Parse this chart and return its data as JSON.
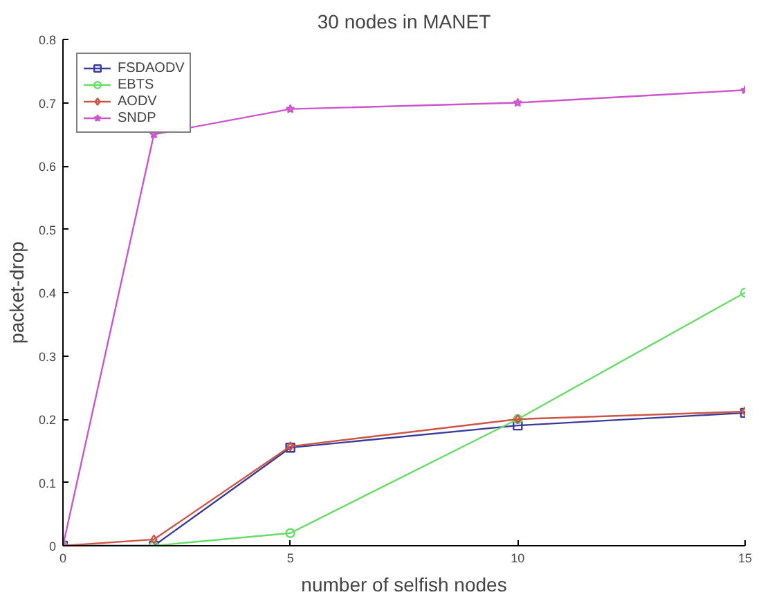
{
  "chart_data": {
    "type": "line",
    "title": "30 nodes in MANET",
    "xlabel": "number of selfish nodes",
    "ylabel": "packet-drop",
    "x": [
      0,
      2,
      5,
      10,
      15
    ],
    "series": [
      {
        "name": "FSDAODV",
        "color": "#3a3a9a",
        "marker": "square",
        "values": [
          0,
          0,
          0.155,
          0.19,
          0.21
        ]
      },
      {
        "name": "EBTS",
        "color": "#66dd66",
        "marker": "circle",
        "values": [
          0,
          0,
          0.02,
          0.2,
          0.4
        ]
      },
      {
        "name": "AODV",
        "color": "#cc5544",
        "marker": "diamond",
        "values": [
          0,
          0.01,
          0.157,
          0.2,
          0.212
        ]
      },
      {
        "name": "SNDP",
        "color": "#cc55cc",
        "marker": "star",
        "values": [
          0,
          0.65,
          0.69,
          0.7,
          0.72
        ]
      }
    ],
    "xlim": [
      0,
      15
    ],
    "ylim": [
      0,
      0.8
    ],
    "xticks": [
      0,
      5,
      10,
      15
    ],
    "yticks": [
      0,
      0.1,
      0.2,
      0.3,
      0.4,
      0.5,
      0.6,
      0.7,
      0.8
    ],
    "grid": false,
    "legend": "top left",
    "line_style": "solid"
  }
}
